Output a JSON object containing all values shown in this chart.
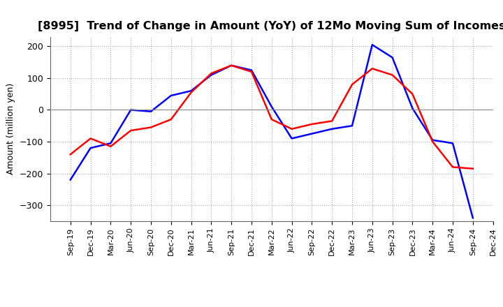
{
  "title": "[8995]  Trend of Change in Amount (YoY) of 12Mo Moving Sum of Incomes",
  "ylabel": "Amount (million yen)",
  "labels": [
    "Sep-19",
    "Dec-19",
    "Mar-20",
    "Jun-20",
    "Sep-20",
    "Dec-20",
    "Mar-21",
    "Jun-21",
    "Sep-21",
    "Dec-21",
    "Mar-22",
    "Jun-22",
    "Sep-22",
    "Dec-22",
    "Mar-23",
    "Jun-23",
    "Sep-23",
    "Dec-23",
    "Mar-24",
    "Jun-24",
    "Sep-24",
    "Dec-24"
  ],
  "ordinary_income": [
    -220,
    -120,
    -105,
    0,
    -5,
    45,
    60,
    110,
    140,
    125,
    10,
    -90,
    -75,
    -60,
    -50,
    205,
    165,
    5,
    -95,
    -105,
    -340,
    null
  ],
  "net_income": [
    -140,
    -90,
    -115,
    -65,
    -55,
    -30,
    55,
    115,
    140,
    120,
    -30,
    -60,
    -45,
    -35,
    80,
    130,
    110,
    50,
    -100,
    -180,
    -185,
    null
  ],
  "ordinary_color": "#0000FF",
  "net_color": "#FF0000",
  "background_color": "#FFFFFF",
  "grid_color": "#AAAAAA",
  "ylim": [
    -350,
    230
  ],
  "yticks": [
    -300,
    -200,
    -100,
    0,
    100,
    200
  ],
  "title_fontsize": 11.5,
  "axis_fontsize": 9,
  "legend_fontsize": 10
}
